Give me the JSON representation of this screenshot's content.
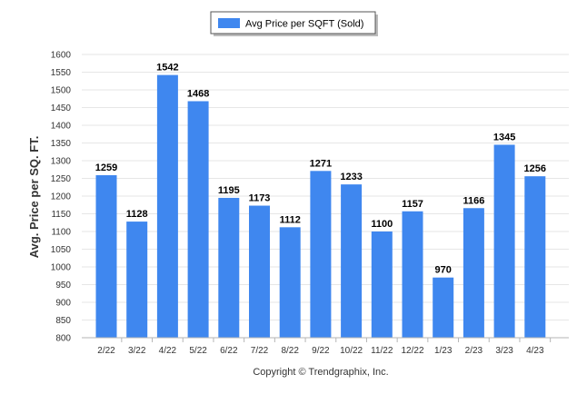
{
  "chart_data": {
    "type": "bar",
    "categories": [
      "2/22",
      "3/22",
      "4/22",
      "5/22",
      "6/22",
      "7/22",
      "8/22",
      "9/22",
      "10/22",
      "11/22",
      "12/22",
      "1/23",
      "2/23",
      "3/23",
      "4/23"
    ],
    "series": [
      {
        "name": "Avg Price per SQFT (Sold)",
        "values": [
          1259,
          1128,
          1542,
          1468,
          1195,
          1173,
          1112,
          1271,
          1233,
          1100,
          1157,
          970,
          1166,
          1345,
          1256
        ],
        "color": "#3f87ef"
      }
    ],
    "ylabel": "Avg. Price per SQ. FT.",
    "ylim": [
      800,
      1600
    ],
    "yticks": [
      800,
      850,
      900,
      950,
      1000,
      1050,
      1100,
      1150,
      1200,
      1250,
      1300,
      1350,
      1400,
      1450,
      1500,
      1550,
      1600
    ],
    "grid": true,
    "legend_position": "top-center",
    "data_labels": true
  },
  "footer": "Copyright © Trendgraphix, Inc."
}
